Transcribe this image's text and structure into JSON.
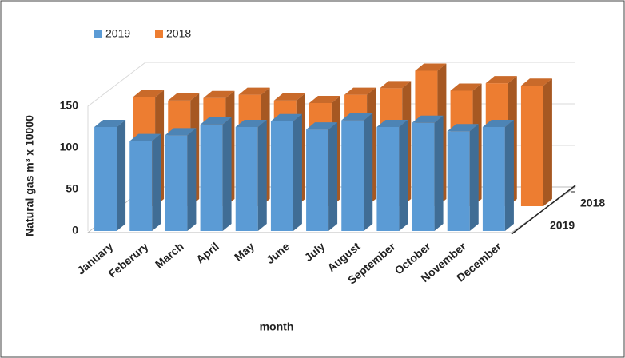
{
  "chart_data": {
    "type": "bar3d",
    "categories": [
      "January",
      "Feberury",
      "March",
      "April",
      "May",
      "June",
      "July",
      "August",
      "September",
      "October",
      "November",
      "December"
    ],
    "series": [
      {
        "name": "2019",
        "color": "#5b9bd5",
        "values": [
          125,
          108,
          115,
          128,
          125,
          132,
          122,
          133,
          125,
          130,
          120,
          125
        ]
      },
      {
        "name": "2018",
        "color": "#ed7d31",
        "values": [
          131,
          127,
          130,
          134,
          127,
          124,
          134,
          142,
          163,
          139,
          148,
          145
        ]
      }
    ],
    "ylim": [
      0,
      150
    ],
    "yticks": [
      0,
      50,
      100,
      150
    ],
    "grid": true,
    "ylabel": "Natural gas m³  x 10000",
    "xlabel": "month",
    "legend": "top-left"
  }
}
